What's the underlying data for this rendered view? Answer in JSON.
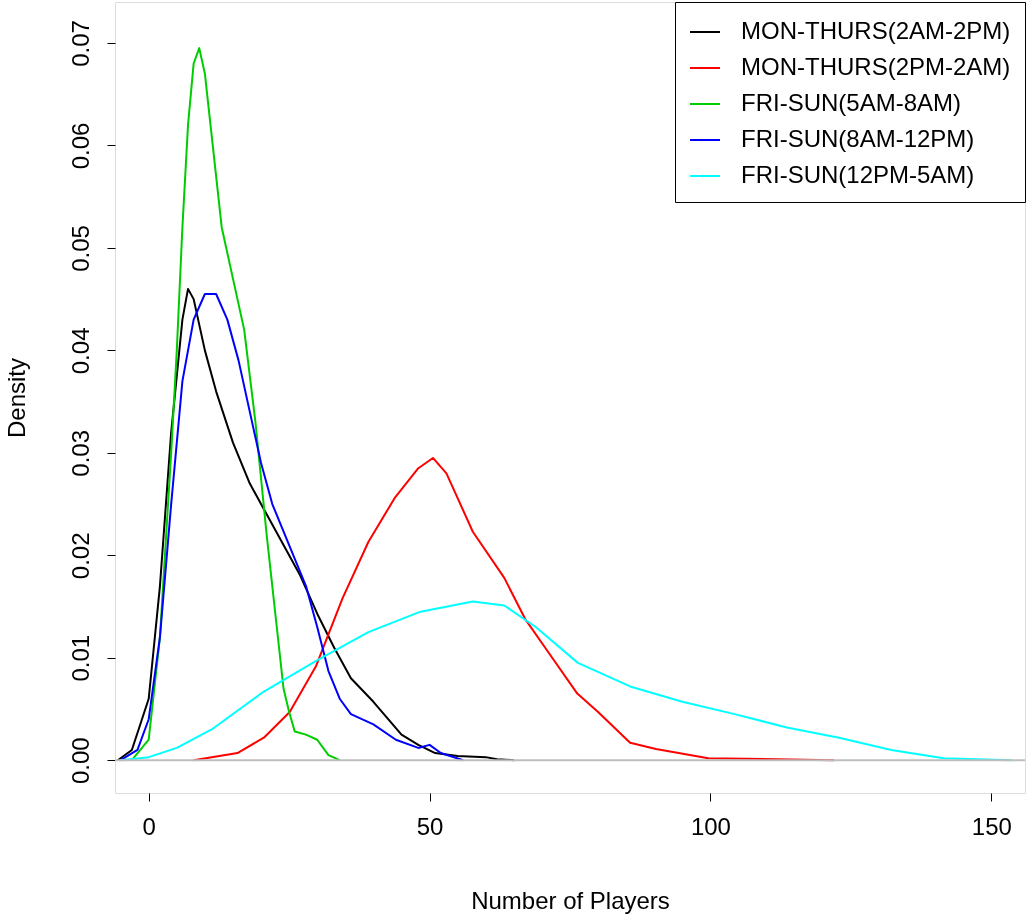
{
  "chart_data": {
    "type": "line",
    "xlabel": "Number of Players",
    "ylabel": "Density",
    "xlim": [
      -6,
      156
    ],
    "ylim": [
      -0.0032,
      0.074
    ],
    "xticks": [
      0,
      50,
      100,
      150
    ],
    "yticks": [
      {
        "value": 0,
        "label": "0.00"
      },
      0.01,
      0.02,
      0.03,
      0.04,
      0.05,
      0.06,
      0.07
    ],
    "legend": "top right",
    "grid": false,
    "line_style": "solid",
    "marker": "none",
    "ref_lines": [
      {
        "axis": "y",
        "value": 0,
        "color": "#bebebe"
      }
    ],
    "series": [
      {
        "name": "MON-THURS(2AM-2PM)",
        "color": "#000000",
        "x": [
          -5.5,
          -3,
          0,
          2,
          4,
          6,
          7,
          8,
          10,
          12,
          15,
          18,
          21,
          24,
          27,
          30,
          33,
          36,
          40,
          45,
          48,
          51,
          55,
          60,
          62,
          65
        ],
        "values": [
          0,
          0.001,
          0.006,
          0.017,
          0.032,
          0.043,
          0.046,
          0.045,
          0.04,
          0.036,
          0.031,
          0.027,
          0.024,
          0.021,
          0.018,
          0.0143,
          0.011,
          0.008,
          0.0057,
          0.0025,
          0.0015,
          0.0007,
          0.0004,
          0.0003,
          0.0001,
          0
        ]
      },
      {
        "name": "MON-THURS(2PM-2AM)",
        "color": "#ff0000",
        "x": [
          8,
          15.8,
          20.5,
          25.1,
          29.8,
          34.5,
          39.1,
          43.8,
          48,
          50.6,
          53,
          57.7,
          63.3,
          67,
          70.8,
          76.3,
          80,
          85.7,
          90.3,
          99.6,
          122
        ],
        "values": [
          0,
          0.0007,
          0.0022,
          0.0047,
          0.0092,
          0.0158,
          0.0213,
          0.0256,
          0.0285,
          0.0295,
          0.028,
          0.0223,
          0.0178,
          0.0138,
          0.0108,
          0.0065,
          0.0047,
          0.0017,
          0.0011,
          0.0002,
          0
        ]
      },
      {
        "name": "FRI-SUN(5AM-8AM)",
        "color": "#00cd00",
        "x": [
          -3,
          0,
          2,
          4,
          5,
          6,
          7,
          8,
          9,
          10,
          11,
          12,
          13,
          15,
          17,
          19,
          21,
          23,
          24,
          25,
          26,
          28,
          30,
          32,
          34
        ],
        "values": [
          0,
          0.002,
          0.012,
          0.03,
          0.04,
          0.052,
          0.062,
          0.068,
          0.0695,
          0.067,
          0.062,
          0.057,
          0.052,
          0.047,
          0.042,
          0.033,
          0.022,
          0.012,
          0.007,
          0.0047,
          0.0028,
          0.0025,
          0.002,
          0.0005,
          0
        ]
      },
      {
        "name": "FRI-SUN(8AM-12PM)",
        "color": "#0000ff",
        "x": [
          -5,
          -2,
          0,
          2,
          4,
          6,
          8,
          10,
          12,
          14,
          16,
          18,
          20,
          22,
          25,
          28,
          30,
          32,
          34,
          36,
          40,
          44,
          48,
          50,
          52,
          56
        ],
        "values": [
          0,
          0.001,
          0.004,
          0.012,
          0.025,
          0.037,
          0.043,
          0.0455,
          0.0455,
          0.043,
          0.039,
          0.034,
          0.029,
          0.025,
          0.021,
          0.017,
          0.013,
          0.0087,
          0.006,
          0.0045,
          0.0035,
          0.002,
          0.0012,
          0.0015,
          0.0007,
          0
        ]
      },
      {
        "name": "FRI-SUN(12PM-5AM)",
        "color": "#00ffff",
        "x": [
          -5,
          0,
          5,
          11.2,
          20.5,
          29.8,
          39.1,
          48.4,
          57.7,
          63.3,
          68.9,
          76.4,
          85.7,
          95,
          104.3,
          113.6,
          122.9,
          132.2,
          141.5,
          153.6
        ],
        "values": [
          0,
          0.0003,
          0.0012,
          0.003,
          0.0067,
          0.0097,
          0.0125,
          0.0145,
          0.0155,
          0.0151,
          0.013,
          0.0095,
          0.0072,
          0.0057,
          0.0045,
          0.0032,
          0.0022,
          0.001,
          0.0002,
          0
        ]
      }
    ]
  }
}
